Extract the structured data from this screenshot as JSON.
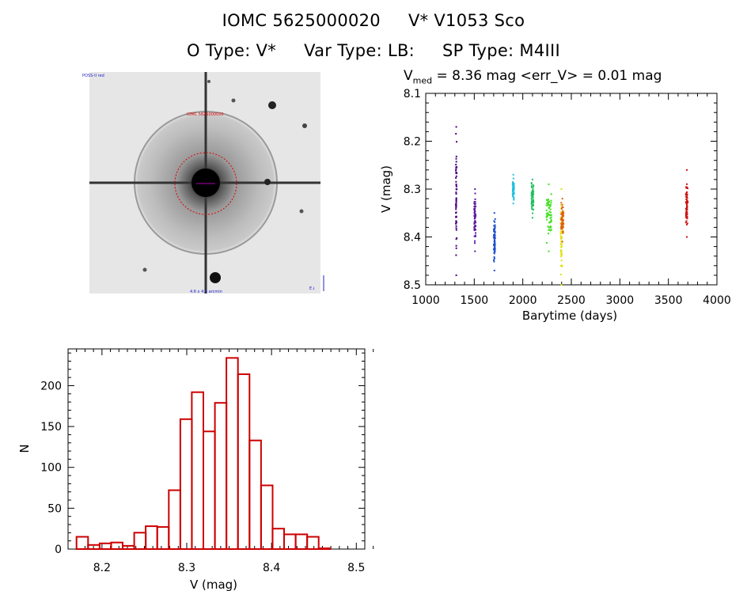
{
  "header": {
    "title_line1": [
      "IOMC 5625000020",
      "V* V1053 Sco"
    ],
    "title_line2": [
      "O Type: V*",
      "Var Type: LB:",
      "SP Type: M4III"
    ]
  },
  "stats": {
    "v_label": "V",
    "v_sub": "med",
    "text": " = 8.36 mag <err_V> = 0.01 mag"
  },
  "image_panel": {
    "type": "star-field-image",
    "label_top_left": "POSS-II red",
    "label_top_center": "IOMC 5625000020",
    "label_bottom_center": "4.6 x 4.6 arcmin"
  },
  "colors": {
    "histogram": "#cc0000",
    "marker": "#cc0000"
  },
  "chart_data": [
    {
      "type": "scatter",
      "xlabel": "Barytime (days)",
      "ylabel": "V (mag)",
      "xlim": [
        1000,
        4000
      ],
      "ylim": [
        8.5,
        8.1
      ],
      "y_inverted": true,
      "x_ticks": [
        1000,
        1500,
        2000,
        2500,
        3000,
        3500,
        4000
      ],
      "y_ticks": [
        8.1,
        8.2,
        8.3,
        8.4,
        8.5
      ],
      "series": [
        {
          "color": "#4b0082",
          "x_range": [
            1310,
            1320
          ],
          "y_range": [
            8.17,
            8.48
          ]
        },
        {
          "color": "#5a1aa0",
          "x_range": [
            1500,
            1515
          ],
          "y_range": [
            8.3,
            8.43
          ]
        },
        {
          "color": "#1f4fd0",
          "x_range": [
            1700,
            1715
          ],
          "y_range": [
            8.35,
            8.47
          ]
        },
        {
          "color": "#20c0e0",
          "x_range": [
            1895,
            1910
          ],
          "y_range": [
            8.27,
            8.33
          ]
        },
        {
          "color": "#20c060",
          "x_range": [
            2090,
            2110
          ],
          "y_range": [
            8.28,
            8.36
          ]
        },
        {
          "color": "#40e020",
          "x_range": [
            2240,
            2295
          ],
          "y_range": [
            8.29,
            8.43
          ]
        },
        {
          "color": "#e0e010",
          "x_range": [
            2390,
            2405
          ],
          "y_range": [
            8.3,
            8.5
          ]
        },
        {
          "color": "#e06010",
          "x_range": [
            2395,
            2420
          ],
          "y_range": [
            8.32,
            8.41
          ]
        },
        {
          "color": "#cc1010",
          "x_range": [
            3680,
            3700
          ],
          "y_range": [
            8.26,
            8.4
          ]
        }
      ]
    },
    {
      "type": "bar",
      "xlabel": "V (mag)",
      "ylabel": "N",
      "xlim": [
        8.16,
        8.51
      ],
      "ylim": [
        0,
        245
      ],
      "x_ticks": [
        8.2,
        8.3,
        8.4,
        8.5
      ],
      "y_ticks": [
        0,
        50,
        100,
        150,
        200
      ],
      "bin_start": 8.17,
      "bin_width": 0.0136,
      "values": [
        15,
        5,
        7,
        8,
        4,
        20,
        28,
        27,
        72,
        159,
        192,
        144,
        179,
        234,
        214,
        133,
        78,
        25,
        18,
        18,
        15,
        1
      ]
    }
  ]
}
